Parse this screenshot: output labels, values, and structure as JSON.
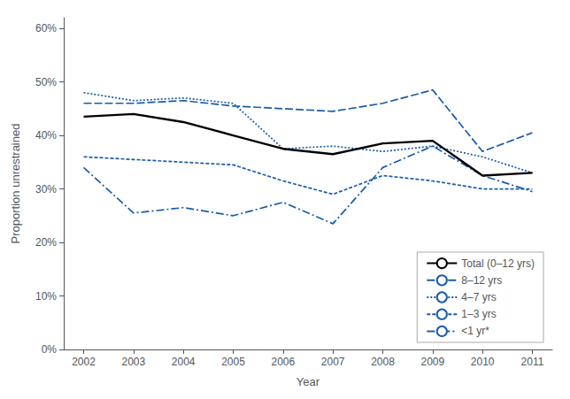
{
  "chart_data": {
    "type": "line",
    "x": [
      2002,
      2003,
      2004,
      2005,
      2006,
      2007,
      2008,
      2009,
      2010,
      2011
    ],
    "series": [
      {
        "name": "Total (0–12 yrs)",
        "color": "#000000",
        "line_style": "solid",
        "values": [
          43.5,
          44.0,
          42.5,
          40.0,
          37.5,
          36.5,
          38.5,
          39.0,
          32.5,
          33.0
        ]
      },
      {
        "name": "8–12 yrs",
        "color": "#1a5ca8",
        "line_style": "long_dash",
        "values": [
          46.0,
          46.0,
          46.5,
          45.5,
          45.0,
          44.5,
          46.0,
          48.5,
          37.0,
          40.5
        ]
      },
      {
        "name": "4–7 yrs",
        "color": "#1a5ca8",
        "line_style": "dotted",
        "values": [
          48.0,
          46.5,
          47.0,
          46.0,
          37.5,
          38.0,
          37.0,
          38.0,
          36.0,
          33.0
        ]
      },
      {
        "name": "1–3 yrs",
        "color": "#1a5ca8",
        "line_style": "short_dash",
        "values": [
          36.0,
          35.5,
          35.0,
          34.5,
          31.5,
          29.0,
          32.5,
          31.5,
          30.0,
          30.0
        ]
      },
      {
        "name": "<1 yr*",
        "color": "#1a5ca8",
        "line_style": "dash_dot",
        "values": [
          34.0,
          25.5,
          26.5,
          25.0,
          27.5,
          23.5,
          34.0,
          38.0,
          32.5,
          29.5
        ]
      }
    ],
    "x_label": "Year",
    "y_label": "Proportion unrestrained",
    "xlim": [
      2001.6,
      2011.4
    ],
    "xticks": [
      2002,
      2003,
      2004,
      2005,
      2006,
      2007,
      2008,
      2009,
      2010,
      2011
    ],
    "ylim": [
      0,
      62
    ],
    "yticks": [
      {
        "value": 0,
        "label": "0%"
      },
      {
        "value": 10,
        "label": "10%"
      },
      {
        "value": 20,
        "label": "20%"
      },
      {
        "value": 30,
        "label": "30%"
      },
      {
        "value": 40,
        "label": "40%"
      },
      {
        "value": 50,
        "label": "50%"
      },
      {
        "value": 60,
        "label": "60%"
      }
    ],
    "grid": false,
    "legend": "lower right",
    "marker": "none"
  }
}
